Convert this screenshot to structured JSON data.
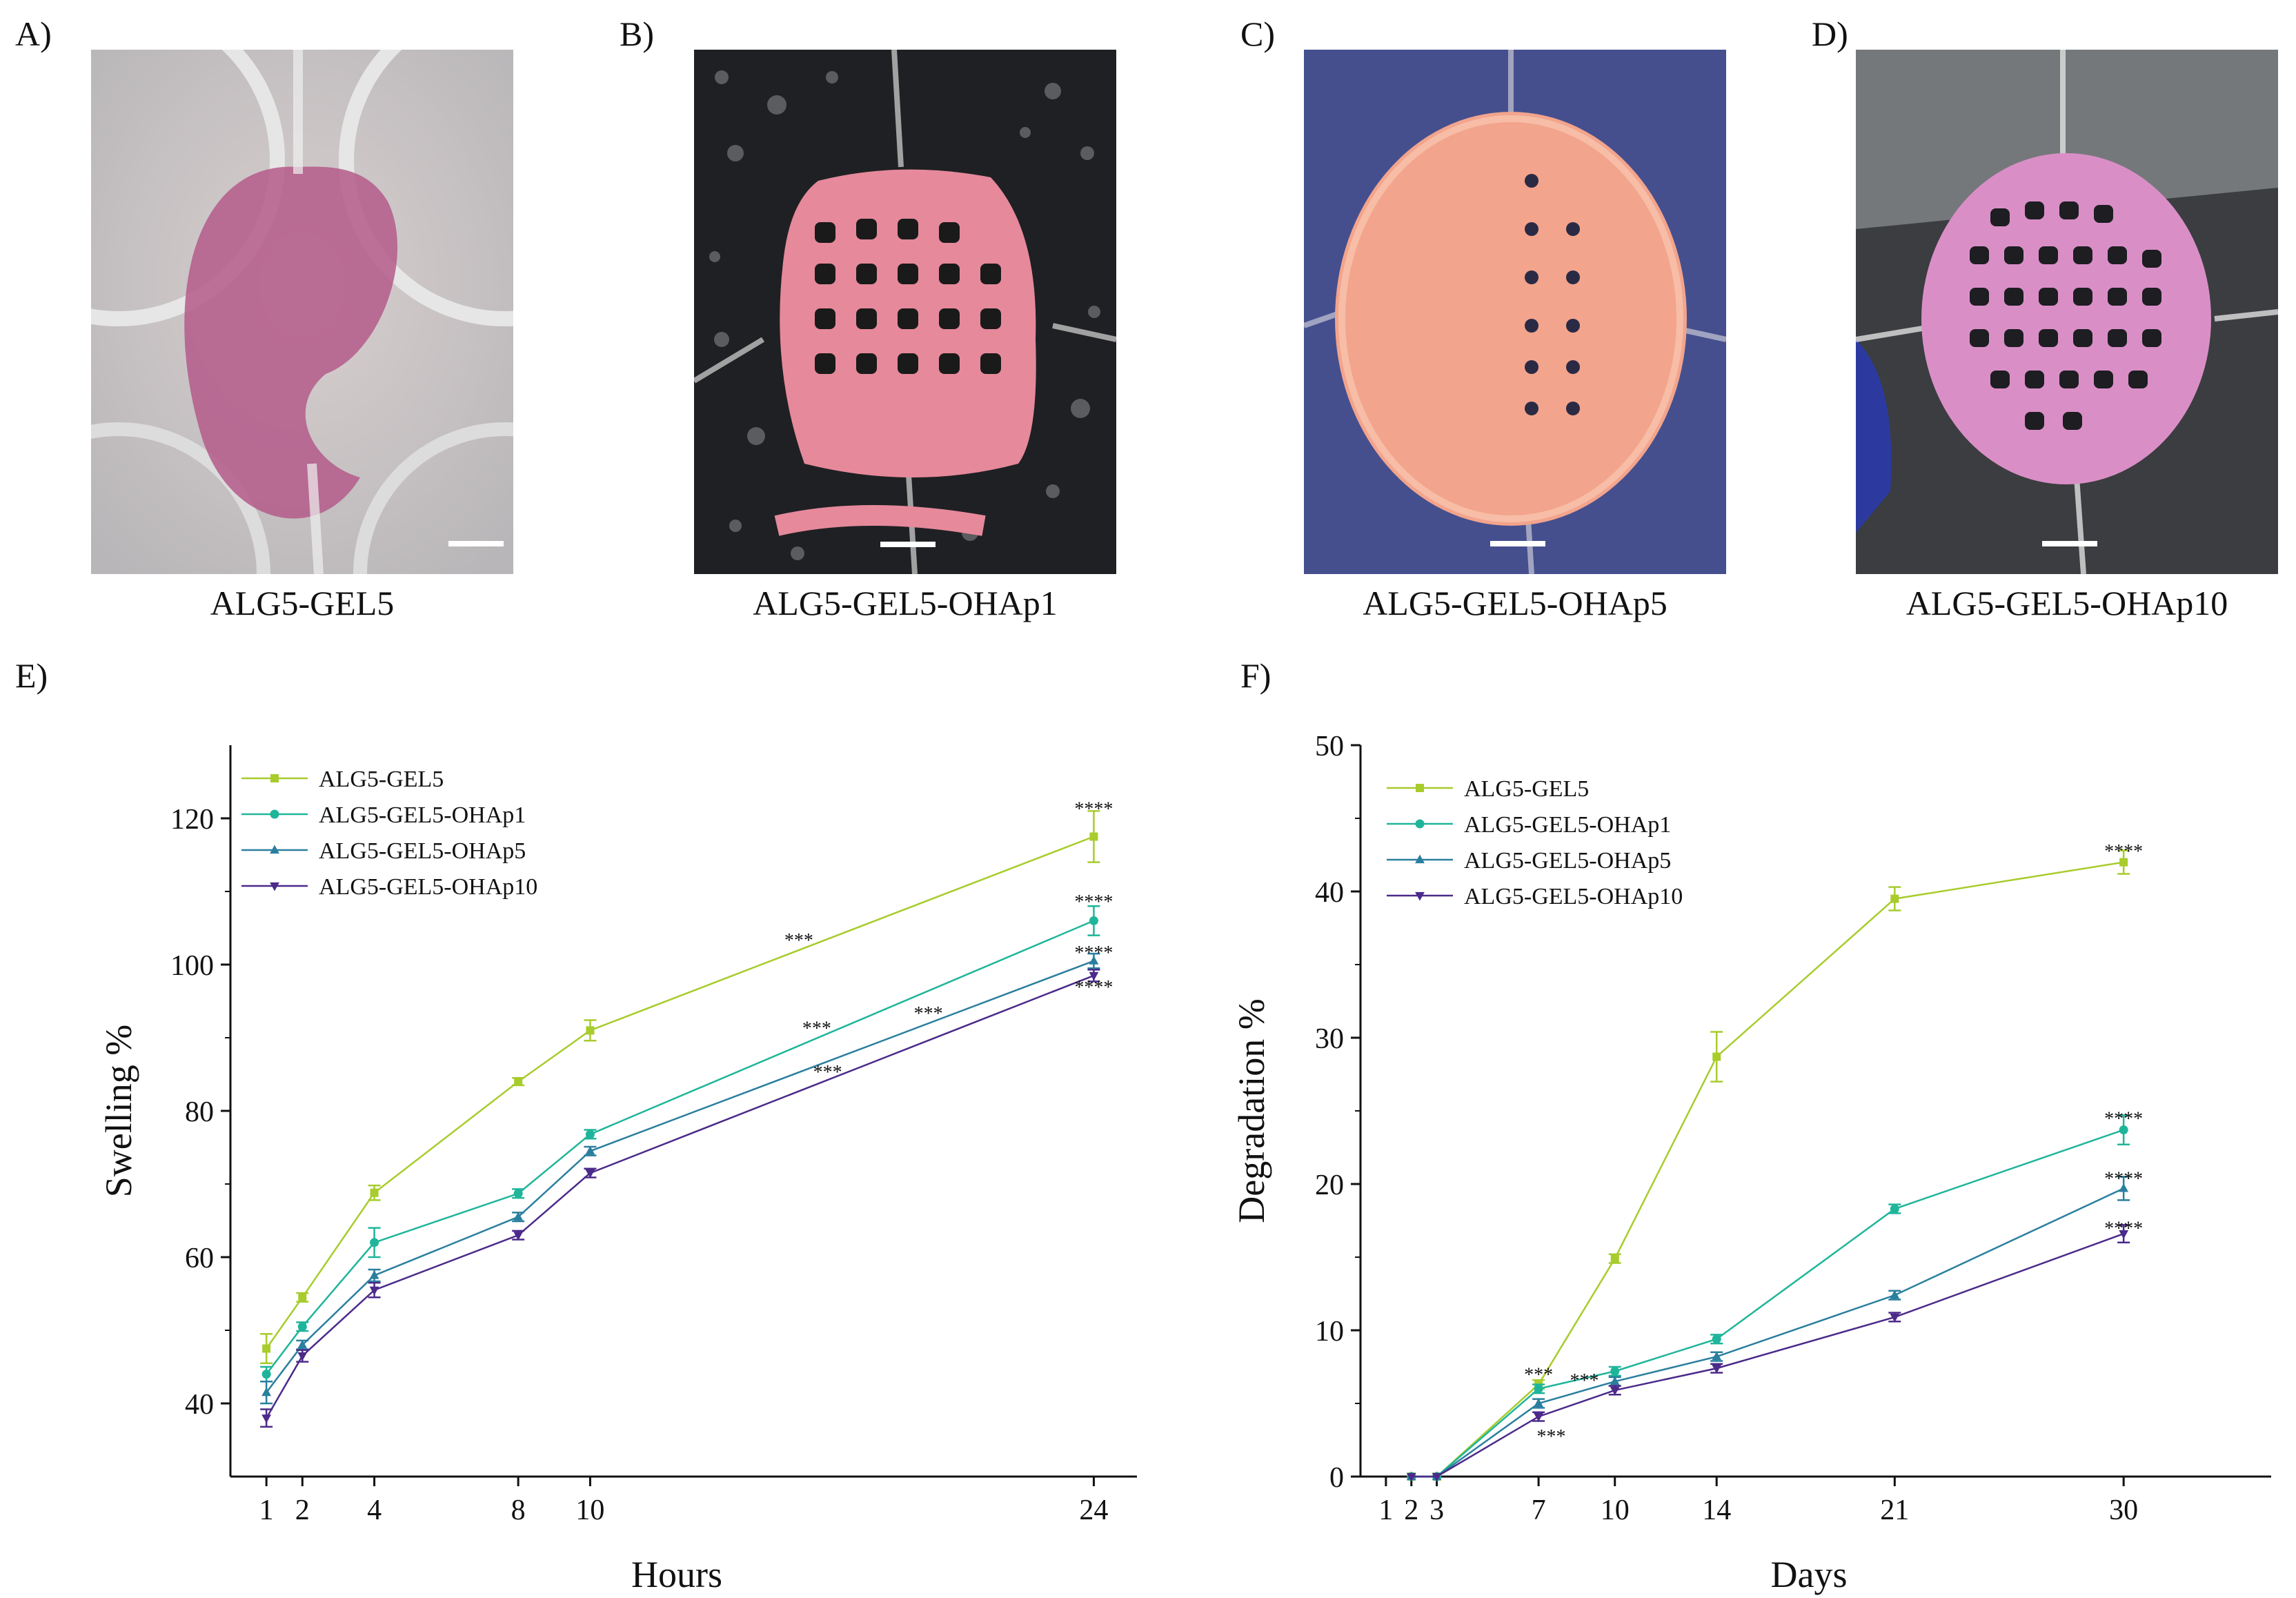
{
  "panels": {
    "a": {
      "letter": "A)",
      "caption": "ALG5-GEL5"
    },
    "b": {
      "letter": "B)",
      "caption": "ALG5-GEL5-OHAp1"
    },
    "c": {
      "letter": "C)",
      "caption": "ALG5-GEL5-OHAp5"
    },
    "d": {
      "letter": "D)",
      "caption": "ALG5-GEL5-OHAp10"
    },
    "e": {
      "letter": "E)"
    },
    "f": {
      "letter": "F)"
    }
  },
  "colors": {
    "ALG5-GEL5": "#a8cc2c",
    "ALG5-GEL5-OHAp1": "#1fb59a",
    "ALG5-GEL5-OHAp5": "#2a7f9e",
    "ALG5-GEL5-OHAp10": "#4b2a8a"
  },
  "chart_data": [
    {
      "id": "E",
      "type": "line",
      "xlabel": "Hours",
      "ylabel": "Swelling %",
      "xlim": [
        0,
        25.2
      ],
      "ylim": [
        30,
        130
      ],
      "xticks": [
        1,
        2,
        4,
        8,
        10,
        24
      ],
      "yticks": [
        40,
        60,
        80,
        100,
        120
      ],
      "x": [
        1,
        2,
        4,
        8,
        10,
        24
      ],
      "legend_position": "top-left",
      "series": [
        {
          "name": "ALG5-GEL5",
          "marker": "square",
          "values": [
            47.5,
            54.5,
            68.8,
            84,
            91,
            117.5
          ],
          "errors": [
            2,
            0.6,
            1,
            0.5,
            1.4,
            3.5
          ]
        },
        {
          "name": "ALG5-GEL5-OHAp1",
          "marker": "circle",
          "values": [
            44,
            50.5,
            62,
            68.7,
            76.8,
            106
          ],
          "errors": [
            1,
            0.6,
            2,
            0.6,
            0.6,
            2
          ]
        },
        {
          "name": "ALG5-GEL5-OHAp5",
          "marker": "triangle-up",
          "values": [
            41.5,
            48,
            57.5,
            65.5,
            74.5,
            100.5
          ],
          "errors": [
            1.5,
            0.6,
            0.8,
            0.6,
            0.6,
            1
          ]
        },
        {
          "name": "ALG5-GEL5-OHAp10",
          "marker": "triangle-down",
          "values": [
            38,
            46.5,
            55.5,
            63,
            71.5,
            98.5
          ],
          "errors": [
            1.2,
            0.8,
            1,
            0.6,
            0.6,
            0.8
          ]
        }
      ],
      "annotations": [
        {
          "text": "****",
          "x": 24,
          "y": 121.2
        },
        {
          "text": "****",
          "x": 24,
          "y": 108.5
        },
        {
          "text": "****",
          "x": 24,
          "y": 101.5
        },
        {
          "text": "****",
          "x": 24,
          "y": 96.8
        },
        {
          "text": "***",
          "x": 15.8,
          "y": 103.2
        },
        {
          "text": "***",
          "x": 16.3,
          "y": 91.2
        },
        {
          "text": "***",
          "x": 19.4,
          "y": 93.2
        },
        {
          "text": "***",
          "x": 16.6,
          "y": 85.2
        }
      ]
    },
    {
      "id": "F",
      "type": "line",
      "xlabel": "Days",
      "ylabel": "Degradation %",
      "xlim": [
        0,
        35.8
      ],
      "ylim": [
        0,
        50
      ],
      "xticks": [
        1,
        2,
        3,
        7,
        10,
        14,
        21,
        30
      ],
      "yticks": [
        0,
        10,
        20,
        30,
        40,
        50
      ],
      "x": [
        2,
        3,
        7,
        10,
        14,
        21,
        30
      ],
      "legend_position": "top-left",
      "series": [
        {
          "name": "ALG5-GEL5",
          "marker": "square",
          "values": [
            0,
            0,
            6.3,
            14.9,
            28.7,
            39.5,
            42
          ],
          "errors": [
            0,
            0,
            0.3,
            0.3,
            1.7,
            0.8,
            0.8
          ]
        },
        {
          "name": "ALG5-GEL5-OHAp1",
          "marker": "circle",
          "values": [
            0,
            0,
            6,
            7.2,
            9.4,
            18.3,
            23.7
          ],
          "errors": [
            0,
            0,
            0.3,
            0.3,
            0.3,
            0.3,
            1
          ]
        },
        {
          "name": "ALG5-GEL5-OHAp5",
          "marker": "triangle-up",
          "values": [
            0,
            0,
            5,
            6.5,
            8.2,
            12.4,
            19.7
          ],
          "errors": [
            0,
            0,
            0.3,
            0.3,
            0.3,
            0.3,
            0.8
          ]
        },
        {
          "name": "ALG5-GEL5-OHAp10",
          "marker": "triangle-down",
          "values": [
            0,
            0,
            4.1,
            5.9,
            7.4,
            10.9,
            16.6
          ],
          "errors": [
            0,
            0,
            0.3,
            0.3,
            0.3,
            0.3,
            0.6
          ]
        }
      ],
      "annotations": [
        {
          "text": "****",
          "x": 30,
          "y": 42.7
        },
        {
          "text": "****",
          "x": 30,
          "y": 24.4
        },
        {
          "text": "****",
          "x": 30,
          "y": 20.3
        },
        {
          "text": "****",
          "x": 30,
          "y": 16.9
        },
        {
          "text": "***",
          "x": 7,
          "y": 6.9
        },
        {
          "text": "***",
          "x": 8.8,
          "y": 6.5
        },
        {
          "text": "***",
          "x": 7.5,
          "y": 2.7
        }
      ]
    }
  ]
}
